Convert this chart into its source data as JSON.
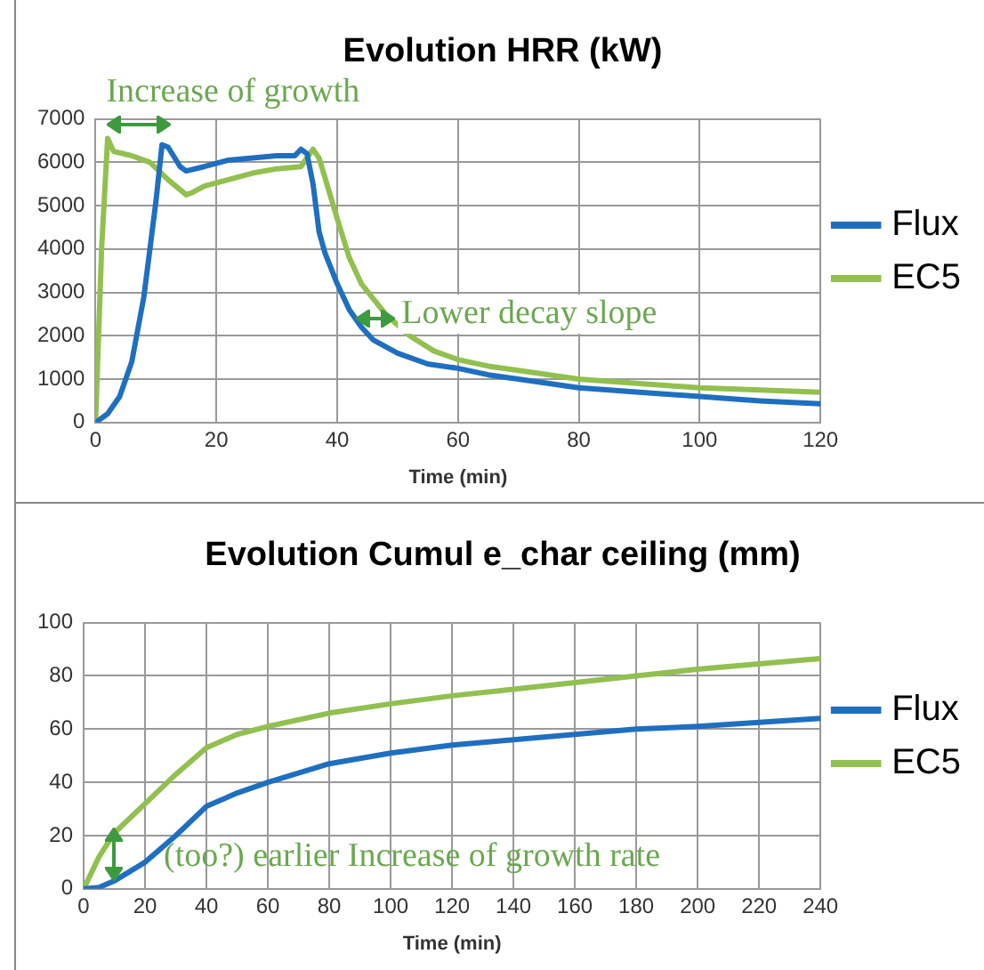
{
  "chart_data": [
    {
      "type": "line",
      "title": "Evolution HRR (kW)",
      "xlabel": "Time (min)",
      "xlim": [
        0,
        120
      ],
      "xticks": [
        0,
        20,
        40,
        60,
        80,
        100,
        120
      ],
      "ylim": [
        0,
        7000
      ],
      "yticks": [
        0,
        1000,
        2000,
        3000,
        4000,
        5000,
        6000,
        7000
      ],
      "grid": true,
      "legend": "right",
      "marker": "none",
      "line_style": "solid",
      "annotations": [
        "Increase of growth",
        {
          "text": "Lower decay slope",
          "x": 43,
          "y": 2500
        }
      ],
      "series": [
        {
          "name": "Flux",
          "color": "#1f6fc0",
          "x": [
            0,
            2,
            4,
            6,
            8,
            10,
            11,
            12,
            14,
            15,
            18,
            22,
            26,
            30,
            33,
            34,
            35,
            36,
            37,
            38,
            40,
            42,
            44,
            46,
            50,
            55,
            60,
            65,
            70,
            80,
            90,
            100,
            110,
            120
          ],
          "values": [
            0,
            200,
            600,
            1400,
            2900,
            5100,
            6400,
            6350,
            5900,
            5800,
            5900,
            6050,
            6100,
            6150,
            6150,
            6300,
            6200,
            5500,
            4400,
            3900,
            3200,
            2600,
            2200,
            1900,
            1600,
            1350,
            1250,
            1100,
            1000,
            800,
            700,
            600,
            500,
            430
          ]
        },
        {
          "name": "EC5",
          "color": "#92c050",
          "x": [
            0,
            1,
            2,
            3,
            6,
            9,
            12,
            15,
            16,
            18,
            22,
            26,
            30,
            34,
            36,
            37,
            40,
            42,
            44,
            48,
            52,
            56,
            60,
            65,
            70,
            80,
            90,
            100,
            110,
            120
          ],
          "values": [
            0,
            4000,
            6550,
            6250,
            6150,
            6000,
            5600,
            5250,
            5300,
            5450,
            5600,
            5750,
            5850,
            5900,
            6300,
            6100,
            4700,
            3800,
            3200,
            2500,
            2000,
            1650,
            1450,
            1300,
            1200,
            1000,
            900,
            800,
            750,
            700
          ]
        }
      ]
    },
    {
      "type": "line",
      "title": "Evolution Cumul e_char ceiling (mm)",
      "xlabel": "Time (min)",
      "xlim": [
        0,
        240
      ],
      "xticks": [
        0,
        20,
        40,
        60,
        80,
        100,
        120,
        140,
        160,
        180,
        200,
        220,
        240
      ],
      "ylim": [
        0,
        100
      ],
      "yticks": [
        0,
        20,
        40,
        60,
        80,
        100
      ],
      "grid": true,
      "legend": "right",
      "marker": "none",
      "line_style": "solid",
      "annotations": [
        "(too?) earlier Increase of growth rate"
      ],
      "series": [
        {
          "name": "Flux",
          "color": "#1f6fc0",
          "x": [
            0,
            5,
            10,
            20,
            30,
            40,
            50,
            60,
            80,
            100,
            120,
            140,
            160,
            180,
            200,
            220,
            240
          ],
          "values": [
            0,
            0.5,
            3,
            10,
            20,
            31,
            36,
            40,
            47,
            51,
            54,
            56,
            58,
            60,
            61,
            62.5,
            64
          ]
        },
        {
          "name": "EC5",
          "color": "#92c050",
          "x": [
            0,
            5,
            10,
            20,
            30,
            40,
            50,
            60,
            80,
            100,
            120,
            140,
            160,
            180,
            200,
            220,
            240
          ],
          "values": [
            0,
            12,
            21,
            32,
            43,
            53,
            58,
            61,
            66,
            69.5,
            72.5,
            75,
            77.5,
            80,
            82.5,
            84.5,
            86.5
          ]
        }
      ]
    }
  ]
}
